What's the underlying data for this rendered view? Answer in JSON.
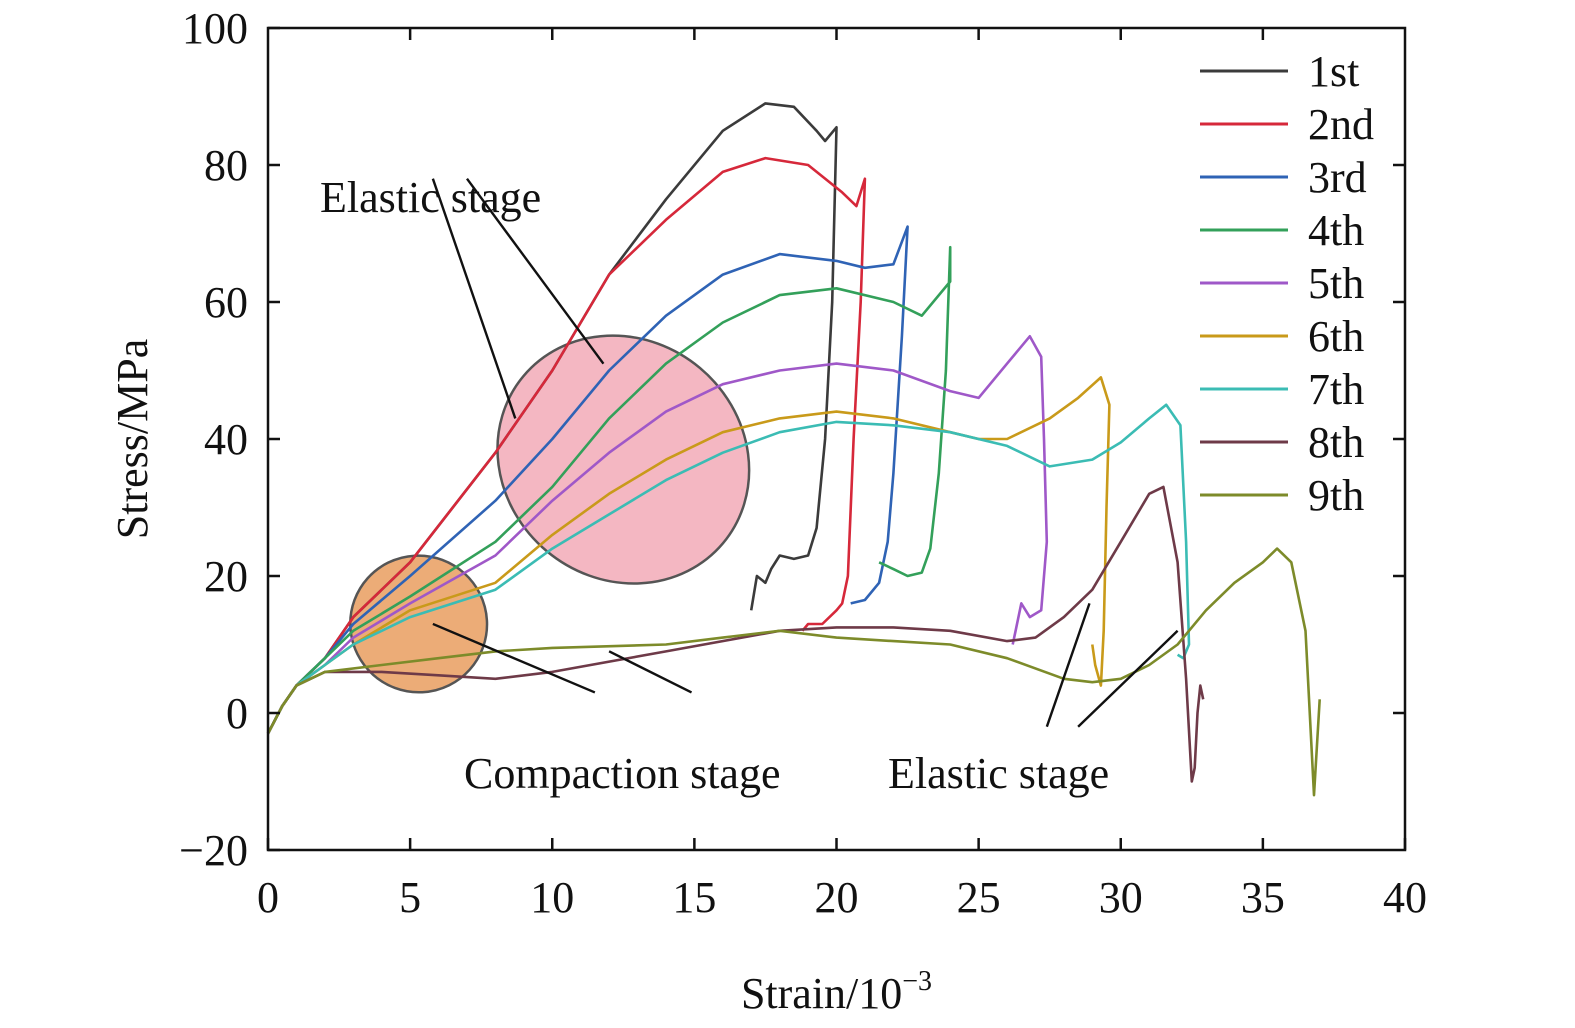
{
  "chart_data": {
    "type": "line",
    "xlabel_base": "Strain/10",
    "xlabel_exp": "−3",
    "ylabel": "Stress/MPa",
    "xlim": [
      0,
      40
    ],
    "ylim": [
      -20,
      100
    ],
    "x_ticks": [
      0,
      5,
      10,
      15,
      20,
      25,
      30,
      35,
      40
    ],
    "x_tick_labels": [
      "0",
      "5",
      "10",
      "15",
      "20",
      "25",
      "30",
      "35",
      "40"
    ],
    "y_ticks": [
      -20,
      0,
      20,
      40,
      60,
      80,
      100
    ],
    "y_tick_labels": [
      "−20",
      "0",
      "20",
      "40",
      "60",
      "80",
      "100"
    ],
    "grid": false,
    "legend_position": "top-right",
    "series": [
      {
        "name": "1st",
        "color": "#3b3b3b",
        "points": [
          [
            0,
            -3
          ],
          [
            0.5,
            1
          ],
          [
            1,
            4
          ],
          [
            2,
            8
          ],
          [
            3,
            14
          ],
          [
            5,
            22
          ],
          [
            8,
            38
          ],
          [
            10,
            50
          ],
          [
            12,
            64
          ],
          [
            14,
            75
          ],
          [
            16,
            85
          ],
          [
            17.5,
            89
          ],
          [
            18.5,
            88.5
          ],
          [
            19.3,
            85
          ],
          [
            19.6,
            83.5
          ],
          [
            20,
            85.5
          ],
          [
            19.85,
            60
          ],
          [
            19.6,
            40
          ],
          [
            19.3,
            27
          ],
          [
            19,
            23
          ],
          [
            18.5,
            22.5
          ],
          [
            18,
            23
          ],
          [
            17.7,
            21
          ],
          [
            17.5,
            19
          ],
          [
            17.2,
            20
          ],
          [
            17,
            15
          ]
        ]
      },
      {
        "name": "2nd",
        "color": "#d6283a",
        "points": [
          [
            0,
            -3
          ],
          [
            0.5,
            1
          ],
          [
            1,
            4
          ],
          [
            2,
            8
          ],
          [
            3,
            14
          ],
          [
            5,
            22
          ],
          [
            8,
            38
          ],
          [
            10,
            50
          ],
          [
            12,
            64
          ],
          [
            14,
            72
          ],
          [
            16,
            79
          ],
          [
            17.5,
            81
          ],
          [
            19,
            80
          ],
          [
            20.2,
            76
          ],
          [
            20.7,
            74
          ],
          [
            21,
            78
          ],
          [
            20.85,
            60
          ],
          [
            20.6,
            40
          ],
          [
            20.4,
            20
          ],
          [
            20.2,
            16
          ],
          [
            20,
            15
          ],
          [
            19.5,
            13
          ],
          [
            19,
            13
          ],
          [
            18.8,
            12
          ]
        ]
      },
      {
        "name": "3rd",
        "color": "#2f63b5",
        "points": [
          [
            0,
            -3
          ],
          [
            0.5,
            1
          ],
          [
            1,
            4
          ],
          [
            2,
            8
          ],
          [
            3,
            13
          ],
          [
            5,
            20
          ],
          [
            8,
            31
          ],
          [
            10,
            40
          ],
          [
            12,
            50
          ],
          [
            14,
            58
          ],
          [
            16,
            64
          ],
          [
            18,
            67
          ],
          [
            20,
            66
          ],
          [
            21,
            65
          ],
          [
            22,
            65.5
          ],
          [
            22.5,
            71
          ],
          [
            22.3,
            55
          ],
          [
            22,
            35
          ],
          [
            21.8,
            25
          ],
          [
            21.5,
            19
          ],
          [
            21,
            16.5
          ],
          [
            20.5,
            16
          ]
        ]
      },
      {
        "name": "4th",
        "color": "#33a05a",
        "points": [
          [
            0,
            -3
          ],
          [
            0.5,
            1
          ],
          [
            1,
            4
          ],
          [
            2,
            8
          ],
          [
            3,
            12
          ],
          [
            5,
            17
          ],
          [
            8,
            25
          ],
          [
            10,
            33
          ],
          [
            12,
            43
          ],
          [
            14,
            51
          ],
          [
            16,
            57
          ],
          [
            18,
            61
          ],
          [
            20,
            62
          ],
          [
            22,
            60
          ],
          [
            23,
            58
          ],
          [
            24,
            63
          ],
          [
            24,
            68
          ],
          [
            23.85,
            50
          ],
          [
            23.6,
            35
          ],
          [
            23.3,
            24
          ],
          [
            23,
            20.5
          ],
          [
            22.5,
            20
          ],
          [
            22,
            21
          ],
          [
            21.5,
            22
          ]
        ]
      },
      {
        "name": "5th",
        "color": "#9f58c8",
        "points": [
          [
            0,
            -3
          ],
          [
            0.5,
            1
          ],
          [
            1,
            4
          ],
          [
            2,
            7
          ],
          [
            3,
            11
          ],
          [
            5,
            16
          ],
          [
            8,
            23
          ],
          [
            10,
            31
          ],
          [
            12,
            38
          ],
          [
            14,
            44
          ],
          [
            16,
            48
          ],
          [
            18,
            50
          ],
          [
            20,
            51
          ],
          [
            22,
            50
          ],
          [
            24,
            47
          ],
          [
            25,
            46
          ],
          [
            26,
            51
          ],
          [
            26.8,
            55
          ],
          [
            27.2,
            52
          ],
          [
            27.3,
            40
          ],
          [
            27.4,
            25
          ],
          [
            27.2,
            15
          ],
          [
            26.8,
            14
          ],
          [
            26.5,
            16
          ],
          [
            26.3,
            12
          ],
          [
            26.2,
            10
          ]
        ]
      },
      {
        "name": "6th",
        "color": "#c99a1a",
        "points": [
          [
            0,
            -3
          ],
          [
            0.5,
            1
          ],
          [
            1,
            4
          ],
          [
            2,
            7
          ],
          [
            3,
            10
          ],
          [
            5,
            15
          ],
          [
            8,
            19
          ],
          [
            10,
            26
          ],
          [
            12,
            32
          ],
          [
            14,
            37
          ],
          [
            16,
            41
          ],
          [
            18,
            43
          ],
          [
            20,
            44
          ],
          [
            22,
            43
          ],
          [
            24,
            41
          ],
          [
            25,
            40
          ],
          [
            26,
            40
          ],
          [
            27.5,
            43
          ],
          [
            28.5,
            46
          ],
          [
            29.3,
            49
          ],
          [
            29.6,
            45
          ],
          [
            29.5,
            30
          ],
          [
            29.4,
            12
          ],
          [
            29.3,
            4
          ],
          [
            29.1,
            7
          ],
          [
            29,
            10
          ]
        ]
      },
      {
        "name": "7th",
        "color": "#3bbcb4",
        "points": [
          [
            0,
            -3
          ],
          [
            0.5,
            1
          ],
          [
            1,
            4
          ],
          [
            2,
            7
          ],
          [
            3,
            10
          ],
          [
            5,
            14
          ],
          [
            8,
            18
          ],
          [
            10,
            24
          ],
          [
            12,
            29
          ],
          [
            14,
            34
          ],
          [
            16,
            38
          ],
          [
            18,
            41
          ],
          [
            20,
            42.5
          ],
          [
            22,
            42
          ],
          [
            24,
            41
          ],
          [
            26,
            39
          ],
          [
            27.5,
            36
          ],
          [
            29,
            37
          ],
          [
            30,
            39.5
          ],
          [
            31,
            43
          ],
          [
            31.6,
            45
          ],
          [
            32.1,
            42
          ],
          [
            32.3,
            25
          ],
          [
            32.4,
            10
          ],
          [
            32.2,
            8
          ],
          [
            32,
            8.5
          ]
        ]
      },
      {
        "name": "8th",
        "color": "#6e3a48",
        "points": [
          [
            0,
            -3
          ],
          [
            0.5,
            1
          ],
          [
            1,
            4
          ],
          [
            2,
            6
          ],
          [
            4,
            6
          ],
          [
            6,
            5.5
          ],
          [
            8,
            5
          ],
          [
            10,
            6
          ],
          [
            14,
            9
          ],
          [
            18,
            12
          ],
          [
            20,
            12.5
          ],
          [
            22,
            12.5
          ],
          [
            24,
            12
          ],
          [
            26,
            10.5
          ],
          [
            27,
            11
          ],
          [
            28,
            14
          ],
          [
            29,
            18
          ],
          [
            30,
            25
          ],
          [
            31,
            32
          ],
          [
            31.5,
            33
          ],
          [
            32,
            22
          ],
          [
            32.3,
            5
          ],
          [
            32.5,
            -10
          ],
          [
            32.6,
            -8
          ],
          [
            32.7,
            0
          ],
          [
            32.8,
            4
          ],
          [
            32.9,
            2
          ]
        ]
      },
      {
        "name": "9th",
        "color": "#7d8b2a",
        "points": [
          [
            0,
            -3
          ],
          [
            0.5,
            1
          ],
          [
            1,
            4
          ],
          [
            2,
            6
          ],
          [
            4,
            7
          ],
          [
            6,
            8
          ],
          [
            8,
            9
          ],
          [
            10,
            9.5
          ],
          [
            14,
            10
          ],
          [
            16,
            11
          ],
          [
            18,
            12
          ],
          [
            20,
            11
          ],
          [
            22,
            10.5
          ],
          [
            24,
            10
          ],
          [
            26,
            8
          ],
          [
            28,
            5
          ],
          [
            29,
            4.5
          ],
          [
            30,
            5
          ],
          [
            31,
            7
          ],
          [
            32,
            10
          ],
          [
            33,
            15
          ],
          [
            34,
            19
          ],
          [
            35,
            22
          ],
          [
            35.5,
            24
          ],
          [
            36,
            22
          ],
          [
            36.5,
            12
          ],
          [
            36.8,
            -12
          ],
          [
            37,
            2
          ]
        ]
      }
    ],
    "annotations": [
      {
        "text": "Elastic stage",
        "kind": "label"
      },
      {
        "text": "Compaction stage",
        "kind": "label"
      },
      {
        "text": "Elastic stage",
        "kind": "label"
      }
    ],
    "regions": [
      {
        "name": "elastic-region",
        "fill": "#f1a7b4",
        "cx": 12.5,
        "cy": 37,
        "rx_data": 4.2,
        "ry_data": 19,
        "angle_deg": -50
      },
      {
        "name": "compaction-region",
        "fill": "#e89a59",
        "cx": 5.3,
        "cy": 13,
        "rx_data": 2.4,
        "ry_data": 10,
        "angle_deg": -48
      }
    ]
  }
}
